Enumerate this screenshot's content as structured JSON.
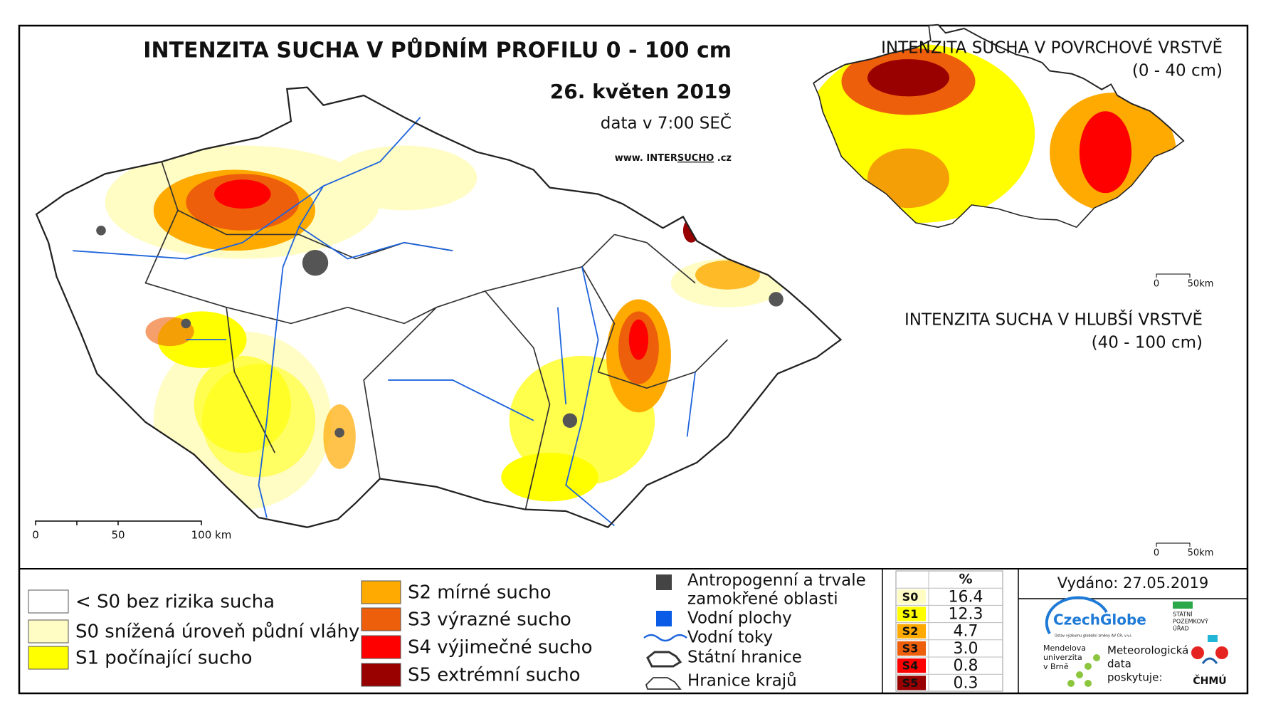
{
  "main": {
    "title": "INTENZITA SUCHA V PŮDNÍM PROFILU 0 - 100 cm",
    "date": "26. květen 2019",
    "time": "data v 7:00 SEČ",
    "web": [
      "www.",
      "INTER",
      "SUCHO",
      ".cz"
    ],
    "scale": [
      "0",
      "50",
      "100 km"
    ]
  },
  "inset_top": {
    "title": "INTENZITA SUCHA V POVRCHOVÉ VRSTVĚ",
    "subtitle": "(0 - 40 cm)",
    "scale": [
      "0",
      "50km"
    ]
  },
  "inset_bottom": {
    "title": "INTENZITA SUCHA V HLUBŠÍ VRSTVĚ",
    "subtitle": "(40 - 100 cm)",
    "scale": [
      "0",
      "50km"
    ]
  },
  "legend": {
    "items": [
      {
        "label": "< S0 bez rizika sucha",
        "color": "#ffffff"
      },
      {
        "label": "S0 snížená úroveň půdní vláhy",
        "color": "#fffcc4"
      },
      {
        "label": "S1 počínající sucho",
        "color": "#ffff00"
      },
      {
        "label": "S2 mírné sucho",
        "color": "#ffaa00"
      },
      {
        "label": "S3 výrazné sucho",
        "color": "#ee5f0c"
      },
      {
        "label": "S4 výjimečné sucho",
        "color": "#ff0000"
      },
      {
        "label": "S5 extrémní sucho",
        "color": "#990000"
      }
    ],
    "symbols": [
      {
        "lines": [
          "Antropogenní a trvale",
          "zamokřené oblasti"
        ],
        "color": "#444444"
      },
      {
        "lines": [
          "Vodní plochy"
        ],
        "color": "#0a5ce6"
      },
      {
        "lines": [
          "Vodní toky"
        ],
        "color": "#1e64dc"
      },
      {
        "lines": [
          "Státní hranice"
        ],
        "color": "#333333"
      },
      {
        "lines": [
          "Hranice krajů"
        ],
        "color": "#333333"
      }
    ]
  },
  "table": {
    "header": "%",
    "rows": [
      [
        "S0",
        "16.4"
      ],
      [
        "S1",
        "12.3"
      ],
      [
        "S2",
        "4.7"
      ],
      [
        "S3",
        "3.0"
      ],
      [
        "S4",
        "0.8"
      ],
      [
        "S5",
        "0.3"
      ]
    ]
  },
  "issued": "Vydáno: 27.05.2019",
  "logos": {
    "czechglobe": "CzechGlobe",
    "czechglobe_sub": "Ústav výzkumu globální změny AV ČR, v.v.i.",
    "spu": [
      "STÁTNÍ",
      "POZEMKOVÝ",
      "ÚŘAD"
    ],
    "mendelu": [
      "Mendelova",
      "univerzita",
      "v Brně"
    ],
    "chmu_text": [
      "Meteorologická",
      "data",
      "poskytuje:"
    ],
    "chmu": "ČHMÚ"
  }
}
